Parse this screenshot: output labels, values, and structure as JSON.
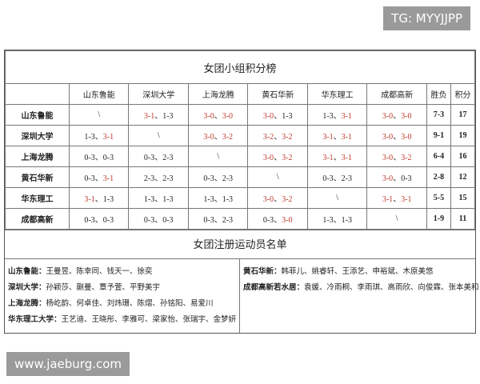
{
  "watermark_top": "TG: MYYJJPP",
  "watermark_bottom": "www.jaeburg.com",
  "standings": {
    "title": "女团小组积分榜",
    "header": [
      "山东鲁能",
      "深圳大学",
      "上海龙腾",
      "黄石华新",
      "华东理工",
      "成都高新",
      "胜负",
      "积分"
    ],
    "separator": "、",
    "win_color": "#c0392b",
    "rows": [
      {
        "team": "山东鲁能",
        "cells": [
          [
            "\\"
          ],
          [
            "3-1",
            "1-3"
          ],
          [
            "3-0",
            "3-0"
          ],
          [
            "3-0",
            "1-3"
          ],
          [
            "1-3",
            "3-1"
          ],
          [
            "3-0",
            "3-0"
          ]
        ],
        "red": [
          [
            false
          ],
          [
            true,
            false
          ],
          [
            true,
            true
          ],
          [
            true,
            false
          ],
          [
            false,
            true
          ],
          [
            true,
            true
          ]
        ],
        "record": "7-3",
        "points": 17
      },
      {
        "team": "深圳大学",
        "cells": [
          [
            "1-3",
            "3-1"
          ],
          [
            "\\"
          ],
          [
            "3-0",
            "3-2"
          ],
          [
            "3-2",
            "3-2"
          ],
          [
            "3-1",
            "3-1"
          ],
          [
            "3-0",
            "3-0"
          ]
        ],
        "red": [
          [
            false,
            true
          ],
          [
            false
          ],
          [
            true,
            true
          ],
          [
            true,
            true
          ],
          [
            true,
            true
          ],
          [
            true,
            true
          ]
        ],
        "record": "9-1",
        "points": 19
      },
      {
        "team": "上海龙腾",
        "cells": [
          [
            "0-3",
            "0-3"
          ],
          [
            "0-3",
            "2-3"
          ],
          [
            "\\"
          ],
          [
            "3-0",
            "3-2"
          ],
          [
            "3-1",
            "3-1"
          ],
          [
            "3-0",
            "3-2"
          ]
        ],
        "red": [
          [
            false,
            false
          ],
          [
            false,
            false
          ],
          [
            false
          ],
          [
            true,
            true
          ],
          [
            true,
            true
          ],
          [
            true,
            true
          ]
        ],
        "record": "6-4",
        "points": 16
      },
      {
        "team": "黄石华新",
        "cells": [
          [
            "0-3",
            "3-1"
          ],
          [
            "2-3",
            "2-3"
          ],
          [
            "0-3",
            "2-3"
          ],
          [
            "\\"
          ],
          [
            "0-3",
            "2-3"
          ],
          [
            "3-0",
            "0-3"
          ]
        ],
        "red": [
          [
            false,
            true
          ],
          [
            false,
            false
          ],
          [
            false,
            false
          ],
          [
            false
          ],
          [
            false,
            false
          ],
          [
            true,
            false
          ]
        ],
        "record": "2-8",
        "points": 12
      },
      {
        "team": "华东理工",
        "cells": [
          [
            "3-1",
            "1-3"
          ],
          [
            "1-3",
            "1-3"
          ],
          [
            "1-3",
            "1-3"
          ],
          [
            "3-0",
            "3-2"
          ],
          [
            "\\"
          ],
          [
            "3-1",
            "3-1"
          ]
        ],
        "red": [
          [
            true,
            false
          ],
          [
            false,
            false
          ],
          [
            false,
            false
          ],
          [
            true,
            true
          ],
          [
            false
          ],
          [
            true,
            true
          ]
        ],
        "record": "5-5",
        "points": 15
      },
      {
        "team": "成都高新",
        "cells": [
          [
            "0-3",
            "0-3"
          ],
          [
            "0-3",
            "0-3"
          ],
          [
            "0-3",
            "2-3"
          ],
          [
            "0-3",
            "3-0"
          ],
          [
            "1-3",
            "1-3"
          ],
          [
            "\\"
          ]
        ],
        "red": [
          [
            false,
            false
          ],
          [
            false,
            false
          ],
          [
            false,
            false
          ],
          [
            false,
            true
          ],
          [
            false,
            false
          ],
          [
            false
          ]
        ],
        "record": "1-9",
        "points": 11
      }
    ]
  },
  "roster": {
    "title": "女团注册运动员名单",
    "left": [
      {
        "team": "山东鲁能：",
        "players": "王曼昱、陈幸同、钱天一、徐奕"
      },
      {
        "team": "深圳大学：",
        "players": "孙颖莎、蒯曼、覃予萱、平野美宇"
      },
      {
        "team": "上海龙腾：",
        "players": "杨屹韵、何卓佳、刘炜珊、陈熠、孙铭阳、易爱川"
      },
      {
        "team": "华东理工大学：",
        "players": "王艺迪、王晓彤、李雅可、梁家怡、张瑞宇、金梦妍"
      }
    ],
    "right": [
      {
        "team": "黄石华新：",
        "players": "韩菲儿、姚睿轩、王添艺、申裕斌、木原美悠"
      },
      {
        "team": "成都高新若水居：",
        "players": "袁媛、冷雨桐、李雨琪、高雨欣、向俊霖、张本美和"
      }
    ]
  }
}
